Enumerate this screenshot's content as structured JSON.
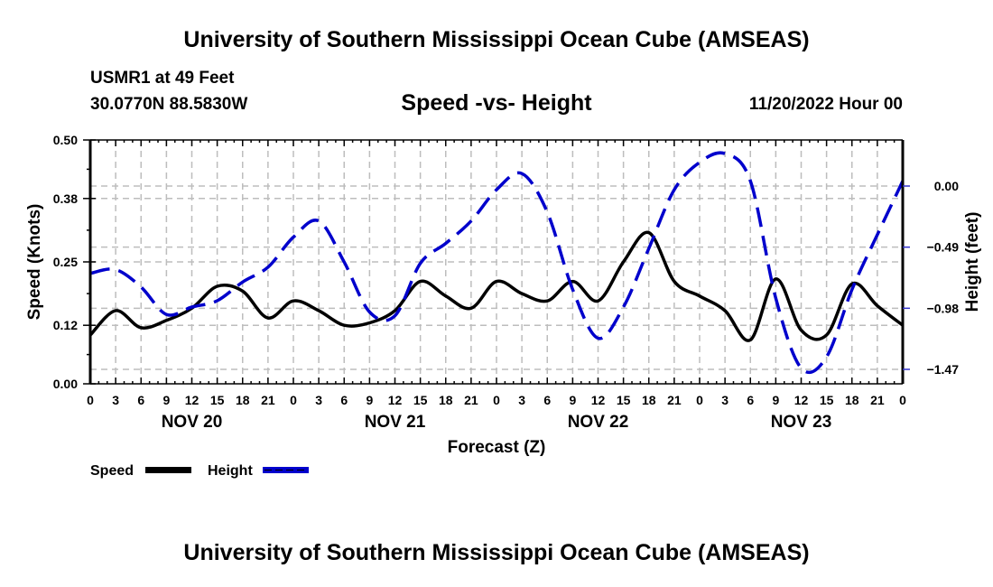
{
  "header": {
    "title": "University of Southern Mississippi Ocean Cube (AMSEAS)",
    "station": "USMR1 at 49 Feet",
    "coordinates": "30.0770N  88.5830W",
    "subtitle": "Speed -vs- Height",
    "datetime": "11/20/2022 Hour 00"
  },
  "footer": {
    "title": "University of Southern Mississippi Ocean Cube (AMSEAS)"
  },
  "chart_data": {
    "type": "line",
    "title": "Speed -vs- Height",
    "xlabel": "Forecast (Z)",
    "ylabel": "Speed (Knots)",
    "y2label": "Height (feet)",
    "x_unit": "forecast hour",
    "xlim": [
      0,
      96
    ],
    "ylim": [
      0,
      0.5
    ],
    "y2lim": [
      -1.7,
      0.3
    ],
    "grid": true,
    "x_tick_labels": [
      "0",
      "3",
      "6",
      "9",
      "12",
      "15",
      "18",
      "21",
      "0",
      "3",
      "6",
      "9",
      "12",
      "15",
      "18",
      "21",
      "0",
      "3",
      "6",
      "9",
      "12",
      "15",
      "18",
      "21",
      "0",
      "3",
      "6",
      "9",
      "12",
      "15",
      "18",
      "21",
      "0"
    ],
    "date_labels": [
      {
        "label": "NOV 20",
        "hour": 12
      },
      {
        "label": "NOV 21",
        "hour": 36
      },
      {
        "label": "NOV 22",
        "hour": 60
      },
      {
        "label": "NOV 23",
        "hour": 84
      }
    ],
    "y_ticks": [
      0.0,
      0.12,
      0.25,
      0.38,
      0.5
    ],
    "y_tick_labels": [
      "0.00",
      "0.12",
      "0.25",
      "0.38",
      "0.50"
    ],
    "y2_ticks": [
      0.0,
      -0.49,
      -0.98,
      -1.47
    ],
    "y2_tick_labels": [
      "0.00",
      "−0.49",
      "−0.98",
      "−1.47"
    ],
    "x": [
      0,
      3,
      6,
      9,
      12,
      15,
      18,
      21,
      24,
      27,
      30,
      33,
      36,
      39,
      42,
      45,
      48,
      51,
      54,
      57,
      60,
      63,
      66,
      69,
      72,
      75,
      78,
      81,
      84,
      87,
      90,
      93,
      96
    ],
    "series": [
      {
        "name": "Speed",
        "axis": "left",
        "color": "#000000",
        "style": "solid",
        "values": [
          0.1,
          0.15,
          0.115,
          0.13,
          0.155,
          0.2,
          0.19,
          0.135,
          0.17,
          0.15,
          0.12,
          0.125,
          0.15,
          0.21,
          0.18,
          0.155,
          0.21,
          0.185,
          0.17,
          0.21,
          0.17,
          0.25,
          0.31,
          0.21,
          0.18,
          0.15,
          0.09,
          0.215,
          0.11,
          0.1,
          0.205,
          0.16,
          0.12
        ]
      },
      {
        "name": "Height",
        "axis": "right",
        "color": "#0000cc",
        "style": "dashed",
        "values": [
          -0.7,
          -0.67,
          -0.81,
          -1.03,
          -0.97,
          -0.92,
          -0.77,
          -0.65,
          -0.41,
          -0.28,
          -0.61,
          -1.01,
          -1.04,
          -0.62,
          -0.46,
          -0.28,
          -0.03,
          0.1,
          -0.21,
          -0.83,
          -1.22,
          -0.97,
          -0.5,
          -0.03,
          0.19,
          0.26,
          0.04,
          -0.9,
          -1.46,
          -1.37,
          -0.83,
          -0.39,
          0.04
        ]
      }
    ],
    "legend": {
      "position": "bottom-left",
      "entries": [
        {
          "label": "Speed",
          "color": "#000000",
          "style": "solid"
        },
        {
          "label": "Height",
          "color": "#0000cc",
          "style": "dashed"
        }
      ]
    }
  }
}
